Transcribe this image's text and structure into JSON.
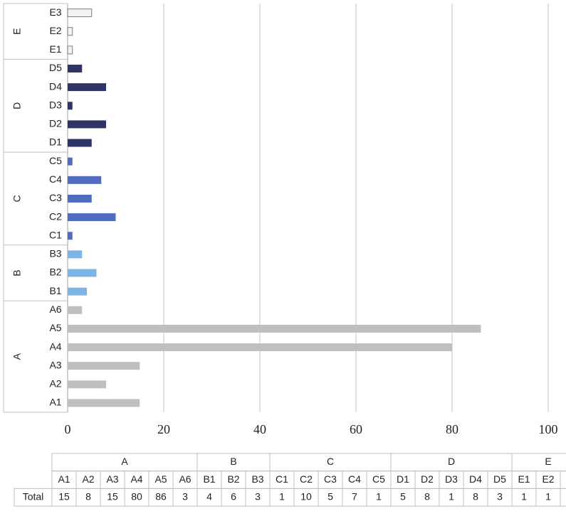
{
  "chart_data": {
    "type": "bar",
    "orientation": "horizontal",
    "series": [
      {
        "name": "A",
        "color": "#bfbfbf",
        "categories": [
          "A1",
          "A2",
          "A3",
          "A4",
          "A5",
          "A6"
        ],
        "values": [
          15,
          8,
          15,
          80,
          86,
          3
        ]
      },
      {
        "name": "B",
        "color": "#7db4e4",
        "categories": [
          "B1",
          "B2",
          "B3"
        ],
        "values": [
          4,
          6,
          3
        ]
      },
      {
        "name": "C",
        "color": "#4f6cbf",
        "categories": [
          "C1",
          "C2",
          "C3",
          "C4",
          "C5"
        ],
        "values": [
          1,
          10,
          5,
          7,
          1
        ]
      },
      {
        "name": "D",
        "color": "#2d3567",
        "categories": [
          "D1",
          "D2",
          "D3",
          "D4",
          "D5"
        ],
        "values": [
          5,
          8,
          1,
          8,
          3
        ]
      },
      {
        "name": "E",
        "color": "#f2f2f2",
        "categories": [
          "E1",
          "E2",
          "E3"
        ],
        "values": [
          1,
          1,
          5
        ]
      }
    ],
    "xlim": [
      0,
      100
    ],
    "xticks": [
      0,
      20,
      40,
      60,
      80,
      100
    ],
    "grid": true,
    "table_row_label": "Total"
  }
}
